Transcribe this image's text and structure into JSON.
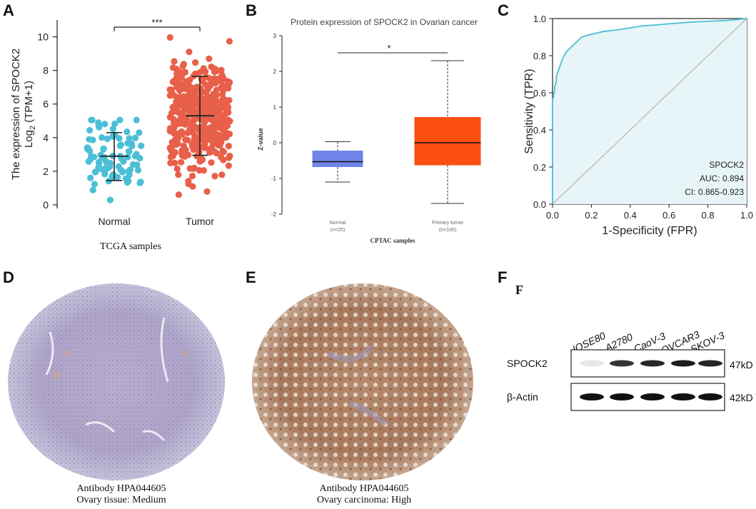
{
  "panels": {
    "A": {
      "letter": "A",
      "xlabel": "TCGA samples",
      "ylabel_line1": "The expression of SPOCK2",
      "ylabel_line2": "Log2 (TPM+1)",
      "ylabel_prefix": "Log",
      "ylabel_sub": "2",
      "ylabel_suffix": " (TPM+1)",
      "sig": "***"
    },
    "B": {
      "letter": "B",
      "title": "Protein expression of SPOCK2 in Ovarian cancer",
      "ylabel": "Z-value",
      "xlabel": "CPTAC samples",
      "sig": "*",
      "group_notes": [
        "(n=25)",
        "(n=100)"
      ]
    },
    "C": {
      "letter": "C",
      "xlabel": "1-Specificity (FPR)",
      "ylabel": "Sensitivity (TPR)",
      "legend_gene": "SPOCK2",
      "auc": "AUC: 0.894",
      "ci": "CI: 0.865-0.923"
    },
    "D": {
      "letter": "D",
      "caption1": "Antibody HPA044605",
      "caption2": "Ovary tissue: Medium"
    },
    "E": {
      "letter": "E",
      "caption1": "Antibody HPA044605",
      "caption2": "Ovary carcinoma: High"
    },
    "F": {
      "letter": "F",
      "letter_inner": "F",
      "cell_lines": [
        "IOSE80",
        "A2780",
        "CaoV-3",
        "OVCAR3",
        "SKOV-3"
      ],
      "rows": [
        {
          "label": "SPOCK2",
          "size": "47kD",
          "intensity": [
            0.1,
            0.85,
            0.9,
            0.95,
            0.92
          ]
        },
        {
          "label": "β-Actin",
          "size": "42kD",
          "intensity": [
            1,
            1,
            1,
            1,
            1
          ]
        }
      ]
    }
  },
  "chart_data": [
    {
      "id": "A",
      "type": "scatter",
      "categories": [
        "Normal",
        "Tumor"
      ],
      "ylim": [
        0,
        11
      ],
      "yticks": [
        0,
        2,
        4,
        6,
        8,
        10
      ],
      "summary": [
        {
          "name": "Normal",
          "mean": 2.9,
          "sd_low": 1.45,
          "sd_high": 4.3,
          "n": 88,
          "color": "#4bbfd6"
        },
        {
          "name": "Tumor",
          "mean": 5.3,
          "sd_low": 2.95,
          "sd_high": 7.65,
          "n": 380,
          "color": "#e8604a"
        }
      ]
    },
    {
      "id": "B",
      "type": "box",
      "categories": [
        "Normal",
        "Primary tumor"
      ],
      "ylim": [
        -2,
        3
      ],
      "yticks": [
        -2,
        -1,
        0,
        1,
        2,
        3
      ],
      "boxes": [
        {
          "name": "Normal",
          "min": -1.1,
          "q1": -0.68,
          "median": -0.53,
          "q3": -0.22,
          "max": 0.03,
          "color": "#6f84e8"
        },
        {
          "name": "Primary tumor",
          "min": -1.7,
          "q1": -0.63,
          "median": 0.0,
          "q3": 0.72,
          "max": 2.3,
          "color": "#fc4e0f"
        }
      ]
    },
    {
      "id": "C",
      "type": "line",
      "xlim": [
        0,
        1
      ],
      "ylim": [
        0,
        1
      ],
      "ticks": [
        0.0,
        0.2,
        0.4,
        0.6,
        0.8,
        1.0
      ],
      "series": [
        {
          "name": "ROC",
          "color": "#4bbfd6",
          "x": [
            0,
            0.0,
            0.005,
            0.005,
            0.01,
            0.01,
            0.02,
            0.02,
            0.03,
            0.04,
            0.05,
            0.06,
            0.07,
            0.09,
            0.11,
            0.13,
            0.15,
            0.18,
            0.22,
            0.26,
            0.3,
            0.34,
            0.4,
            0.46,
            0.52,
            0.58,
            0.64,
            0.7,
            0.8,
            0.9,
            1.0
          ],
          "y": [
            0,
            0.56,
            0.58,
            0.6,
            0.6,
            0.63,
            0.66,
            0.69,
            0.72,
            0.75,
            0.78,
            0.8,
            0.82,
            0.84,
            0.86,
            0.88,
            0.9,
            0.91,
            0.92,
            0.93,
            0.935,
            0.94,
            0.95,
            0.96,
            0.965,
            0.97,
            0.975,
            0.98,
            0.985,
            0.99,
            1.0
          ]
        },
        {
          "name": "Reference",
          "color": "#bbbbbb",
          "x": [
            0,
            1
          ],
          "y": [
            0,
            1
          ]
        }
      ]
    }
  ]
}
